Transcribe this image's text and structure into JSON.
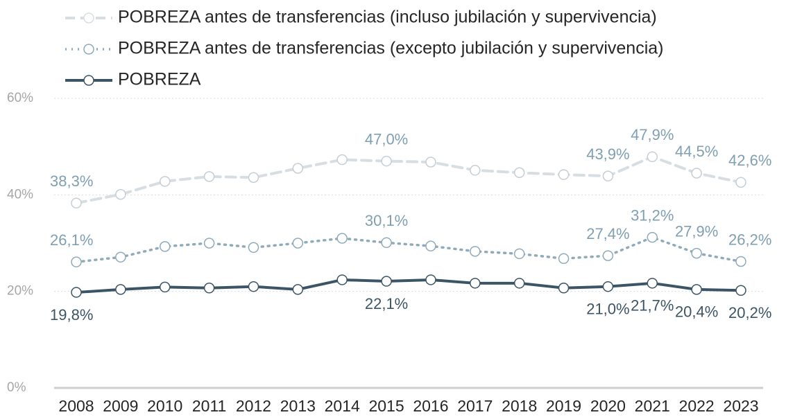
{
  "chart_data": {
    "type": "line",
    "categories": [
      "2008",
      "2009",
      "2010",
      "2011",
      "2012",
      "2013",
      "2014",
      "2015",
      "2016",
      "2017",
      "2018",
      "2019",
      "2020",
      "2021",
      "2022",
      "2023"
    ],
    "ylim": [
      0,
      60
    ],
    "yticks": [
      {
        "value": 0,
        "label": "0%"
      },
      {
        "value": 20,
        "label": "20%"
      },
      {
        "value": 40,
        "label": "40%"
      },
      {
        "value": 60,
        "label": "60%"
      }
    ],
    "grid": true,
    "legend": "top",
    "series": [
      {
        "name": "POBREZA antes de transferencias (incluso  jubilación y supervivencia)",
        "color": "#d6dee4",
        "style": "dashed",
        "values": [
          38.3,
          40.1,
          42.8,
          43.8,
          43.6,
          45.5,
          47.3,
          47.0,
          46.8,
          45.1,
          44.6,
          44.2,
          43.9,
          47.9,
          44.5,
          42.6
        ],
        "value_labels": [
          "38,3%",
          null,
          null,
          null,
          null,
          null,
          null,
          "47,0%",
          null,
          null,
          null,
          null,
          "43,9%",
          "47,9%",
          "44,5%",
          "42,6%"
        ]
      },
      {
        "name": "POBREZA antes de transferencias (excepto jubilación y supervivencia)",
        "color": "#8eaabb",
        "style": "dotted",
        "values": [
          26.1,
          27.1,
          29.3,
          30.0,
          29.1,
          30.0,
          31.0,
          30.1,
          29.4,
          28.3,
          27.8,
          26.8,
          27.4,
          31.2,
          27.9,
          26.2
        ],
        "value_labels": [
          "26,1%",
          null,
          null,
          null,
          null,
          null,
          null,
          "30,1%",
          null,
          null,
          null,
          null,
          "27,4%",
          "31,2%",
          "27,9%",
          "26,2%"
        ]
      },
      {
        "name": "POBREZA",
        "color": "#3c5566",
        "style": "solid",
        "values": [
          19.8,
          20.4,
          20.9,
          20.7,
          21.0,
          20.4,
          22.4,
          22.1,
          22.4,
          21.7,
          21.7,
          20.7,
          21.0,
          21.7,
          20.4,
          20.2
        ],
        "value_labels": [
          "19,8%",
          null,
          null,
          null,
          null,
          null,
          null,
          "22,1%",
          null,
          null,
          null,
          null,
          "21,0%",
          "21,7%",
          "20,4%",
          "20,2%"
        ]
      }
    ]
  }
}
